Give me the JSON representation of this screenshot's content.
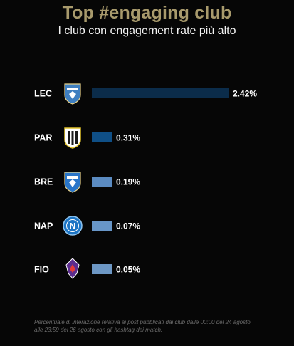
{
  "header": {
    "title": "Top #engaging club",
    "subtitle": "I club con engagement rate più alto"
  },
  "footnote": "Percentuale di interazione relativa ai post pubblicati dai club dalle 00:00 del 24 agosto alle 23:59 del 26 agosto con gli hashtag dei match.",
  "crest_icons": [
    "lecce-crest-icon",
    "parma-crest-icon",
    "brescia-crest-icon",
    "napoli-crest-icon",
    "fiorentina-crest-icon"
  ],
  "colors": {
    "title": "#a89a6c",
    "background": "#060606",
    "bars": [
      "#0b2c4a",
      "#0f4f86",
      "#5b8bc1",
      "#6896c8",
      "#6d97c4"
    ]
  },
  "chart_data": {
    "type": "bar",
    "orientation": "horizontal",
    "categories": [
      "LEC",
      "PAR",
      "BRE",
      "NAP",
      "FIO"
    ],
    "values": [
      2.42,
      0.31,
      0.19,
      0.07,
      0.05
    ],
    "value_labels": [
      "2.42%",
      "0.31%",
      "0.19%",
      "0.07%",
      "0.05%"
    ],
    "title": "Top #engaging club",
    "subtitle": "I club con engagement rate più alto",
    "xlabel": "",
    "ylabel": "",
    "xlim": [
      0,
      2.42
    ],
    "grid": false,
    "legend": "none"
  }
}
